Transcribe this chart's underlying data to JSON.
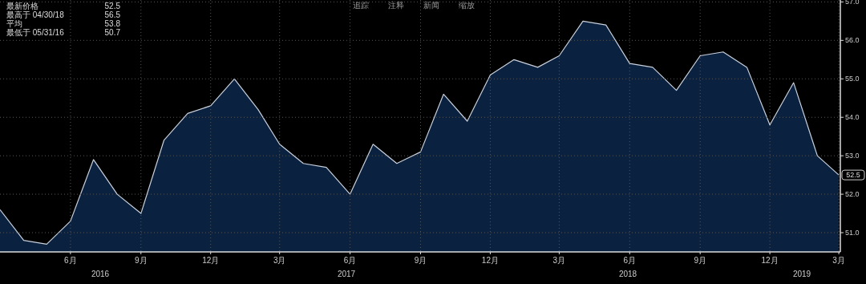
{
  "chart_data": {
    "type": "area",
    "x": [
      "2016-03",
      "2016-04",
      "2016-05",
      "2016-06",
      "2016-07",
      "2016-08",
      "2016-09",
      "2016-10",
      "2016-11",
      "2016-12",
      "2017-01",
      "2017-02",
      "2017-03",
      "2017-04",
      "2017-05",
      "2017-06",
      "2017-07",
      "2017-08",
      "2017-09",
      "2017-10",
      "2017-11",
      "2017-12",
      "2018-01",
      "2018-02",
      "2018-03",
      "2018-04",
      "2018-05",
      "2018-06",
      "2018-07",
      "2018-08",
      "2018-09",
      "2018-10",
      "2018-11",
      "2018-12",
      "2019-01",
      "2019-02",
      "2019-03"
    ],
    "series": [
      {
        "color": "#0b2140",
        "values": [
          51.6,
          50.8,
          50.7,
          51.3,
          52.9,
          52.0,
          51.5,
          53.4,
          54.1,
          54.3,
          55.0,
          54.2,
          53.3,
          52.8,
          52.7,
          52.0,
          53.3,
          52.8,
          53.1,
          54.6,
          53.9,
          55.1,
          55.5,
          55.3,
          55.6,
          56.5,
          56.4,
          55.4,
          55.3,
          54.7,
          55.6,
          55.7,
          55.3,
          53.8,
          54.9,
          53.0,
          52.5
        ]
      }
    ],
    "xlim": [
      "2016-03",
      "2019-03-03"
    ],
    "xticks": [
      {
        "value": "2016-06",
        "label": "6月"
      },
      {
        "value": "2016-09",
        "label": "9月"
      },
      {
        "value": "2016-12",
        "label": "12月"
      },
      {
        "value": "2017-03",
        "label": "3月"
      },
      {
        "value": "2017-06",
        "label": "6月"
      },
      {
        "value": "2017-09",
        "label": "9月"
      },
      {
        "value": "2017-12",
        "label": "12月"
      },
      {
        "value": "2018-03",
        "label": "3月"
      },
      {
        "value": "2018-06",
        "label": "6月"
      },
      {
        "value": "2018-09",
        "label": "9月"
      },
      {
        "value": "2018-12",
        "label": "12月"
      },
      {
        "value": "2019-03",
        "label": "3月"
      }
    ],
    "ylim": [
      50.5,
      57.05
    ],
    "yticks": [
      {
        "value": 51,
        "label": "51.0"
      },
      {
        "value": 52,
        "label": "52.0"
      },
      {
        "value": 53,
        "label": "53.0"
      },
      {
        "value": 54,
        "label": "54.0"
      },
      {
        "value": 55,
        "label": "55.0"
      },
      {
        "value": 56,
        "label": "56.0"
      },
      {
        "value": 57,
        "label": "57.0"
      }
    ],
    "grid": true,
    "annotations": [
      "最新价格 52.5",
      "最高于 04/30/18 56.5",
      "平均 53.8",
      "最低于 05/31/16 50.7",
      "追踪",
      "注释",
      "新闻",
      "缩放",
      "2016",
      "2017",
      "2018",
      "2019",
      {
        "text": "52.5",
        "x": "2019-03",
        "y": 52.5
      }
    ]
  }
}
